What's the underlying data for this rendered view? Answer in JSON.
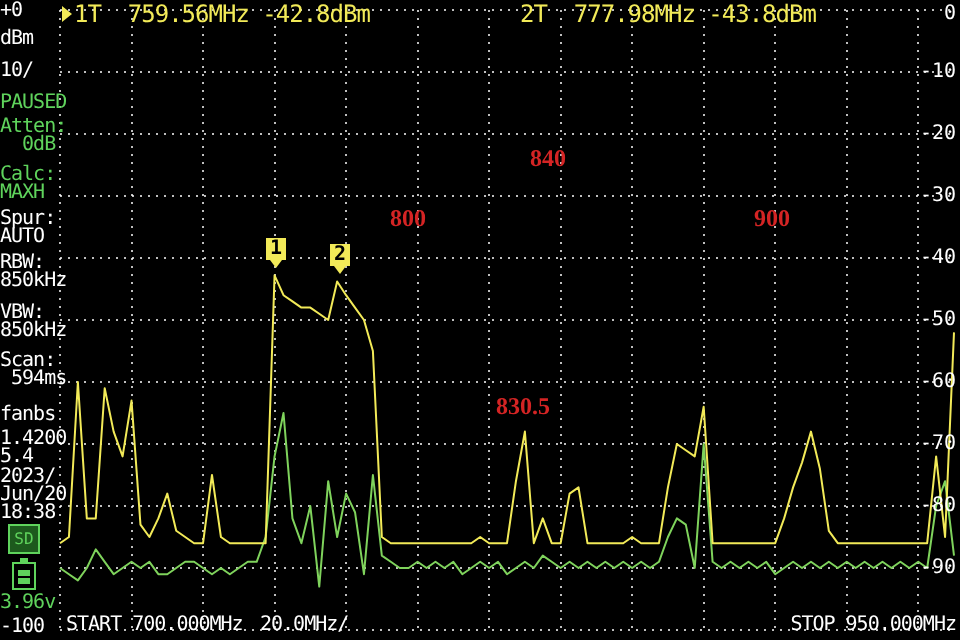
{
  "chart_data": {
    "type": "line",
    "categories": [
      null,
      null,
      null,
      null,
      null,
      null,
      null,
      null,
      null,
      null,
      null,
      null,
      null,
      null,
      null,
      null,
      null,
      null,
      null,
      null,
      null,
      null,
      null,
      null,
      null,
      null,
      null,
      null,
      null,
      null,
      null,
      null,
      null,
      null,
      null,
      null,
      null,
      null,
      null,
      null,
      null,
      null,
      null,
      null,
      null,
      null,
      null,
      null,
      null,
      null,
      null,
      null,
      null,
      null,
      null,
      null,
      null,
      null,
      null,
      null,
      null,
      null,
      null,
      null,
      null,
      null,
      null,
      null,
      null,
      null,
      null,
      null,
      null,
      null,
      null,
      null,
      null,
      null,
      null,
      null,
      null,
      null,
      null,
      null,
      null,
      null,
      null,
      null,
      null,
      null,
      null,
      null,
      null,
      null,
      null,
      null,
      null,
      null,
      null,
      null,
      null
    ],
    "ylim": [
      -100,
      0
    ],
    "yticks": [
      0,
      -10,
      -20,
      -30,
      -40,
      -50,
      -60,
      -70,
      -80,
      -90,
      {
        "value": -100,
        "label": null
      }
    ],
    "grid": true,
    "legend": false,
    "marker": "none",
    "line_style": "solid",
    "series": [
      {
        "color": "#f2ea58",
        "values": [
          -86,
          -85,
          -60,
          -82,
          -82,
          -61,
          -68,
          -72,
          -63,
          -83,
          -85,
          -82,
          -78,
          -84,
          -85,
          -86,
          -86,
          -75,
          -85,
          -86,
          -86,
          -86,
          -86,
          -86,
          -42.8,
          -46,
          -47,
          -48,
          -48,
          -49,
          -50,
          -43.8,
          -46,
          -48,
          -50,
          -55,
          -85,
          -86,
          -86,
          -86,
          -86,
          -86,
          -86,
          -86,
          -86,
          -86,
          -86,
          -85,
          -86,
          -86,
          -86,
          -76,
          -68,
          -86,
          -82,
          -86,
          -86,
          -78,
          -77,
          -86,
          -86,
          -86,
          -86,
          -86,
          -85,
          -86,
          -86,
          -86,
          -77,
          -70,
          -71,
          -72,
          -64,
          -86,
          -86,
          -86,
          -86,
          -86,
          -86,
          -86,
          -86,
          -82,
          -77,
          -73,
          -68,
          -74,
          -84,
          -86,
          -86,
          -86,
          -86,
          -86,
          -86,
          -86,
          -86,
          -86,
          -86,
          -86,
          -72,
          -85,
          -52
        ]
      },
      {
        "color": "#7fd35c",
        "values": [
          -90,
          -91,
          -92,
          -90,
          -87,
          -89,
          -91,
          -90,
          -89,
          -90,
          -89,
          -91,
          -91,
          -90,
          -89,
          -89,
          -90,
          -91,
          -90,
          -91,
          -90,
          -89,
          -89,
          -85,
          -72,
          -65,
          -82,
          -86,
          -80,
          -93,
          -76,
          -85,
          -78,
          -81,
          -91,
          -75,
          -88,
          -89,
          -90,
          -90,
          -89,
          -90,
          -89,
          -90,
          -89,
          -91,
          -90,
          -89,
          -90,
          -89,
          -91,
          -90,
          -89,
          -90,
          -88,
          -89,
          -90,
          -89,
          -90,
          -89,
          -90,
          -89,
          -90,
          -89,
          -90,
          -89,
          -90,
          -89,
          -85,
          -82,
          -83,
          -90,
          -70,
          -89,
          -90,
          -89,
          -90,
          -89,
          -90,
          -89,
          -91,
          -90,
          -89,
          -90,
          -89,
          -90,
          -89,
          -90,
          -89,
          -90,
          -89,
          -90,
          -89,
          -90,
          -89,
          -90,
          -89,
          -90,
          -80,
          -76,
          -88
        ]
      }
    ],
    "annotations": [
      "1T  759.56MHz -42.8dBm",
      "2T  777.98MHz -43.8dBm",
      "+0",
      "dBm",
      "10/",
      "PAUSED",
      "Atten:\n  0dB",
      "Calc:\nMAXH",
      "Spur:\nAUTO",
      "RBW:\n850kHz",
      "VBW:\n850kHz",
      "Scan:\n 594ms",
      "fanbs",
      "1.4200\n5.4",
      "2023/\nJun/20\n18:38",
      "3.96v",
      "-100",
      "SD",
      "1",
      "2",
      "840",
      "800",
      "900",
      "830.5",
      "START 700.000MHz",
      "20.0MHz/",
      "STOP 950.000MHz"
    ]
  }
}
